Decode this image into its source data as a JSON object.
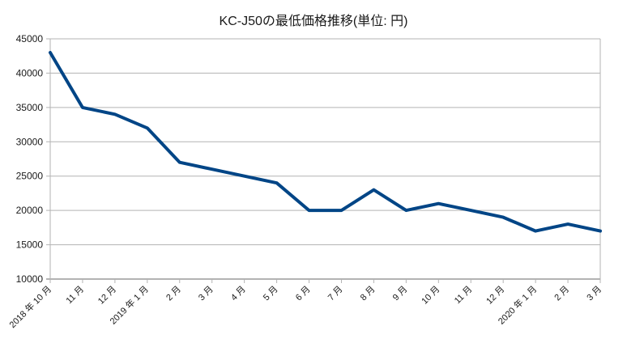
{
  "chart_data": {
    "type": "line",
    "title": "KC-J50の最低価格推移(単位: 円)",
    "xlabel": "",
    "ylabel": "",
    "ylim": [
      10000,
      45000
    ],
    "yticks": [
      10000,
      15000,
      20000,
      25000,
      30000,
      35000,
      40000,
      45000
    ],
    "grid": true,
    "legend": "none",
    "categories": [
      "2018年10月",
      "11月",
      "12月",
      "2019年1月",
      "2月",
      "3月",
      "4月",
      "5月",
      "6月",
      "7月",
      "8月",
      "9月",
      "10月",
      "11月",
      "12月",
      "2020年1月",
      "2月",
      "3月"
    ],
    "series": [
      {
        "name": "最低価格",
        "color": "#004586",
        "values": [
          43000,
          35000,
          34000,
          32000,
          27000,
          26000,
          25000,
          24000,
          20000,
          20000,
          23000,
          20000,
          21000,
          20000,
          19000,
          17000,
          18000,
          17000
        ]
      }
    ]
  },
  "colors": {
    "line": "#004586",
    "grid": "#b3b3b3",
    "text": "#1a1a1a"
  }
}
